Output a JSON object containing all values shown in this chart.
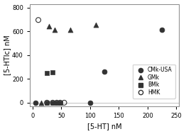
{
  "title": "",
  "xlabel": "[5-HT] nM",
  "ylabel": "[5-HTlc] nM",
  "xlim": [
    -5,
    255
  ],
  "ylim": [
    -30,
    830
  ],
  "yticks": [
    0,
    200,
    400,
    600,
    800
  ],
  "xticks": [
    0,
    50,
    100,
    150,
    200,
    250
  ],
  "series": {
    "CMk-USA": {
      "x": [
        5,
        100,
        125,
        225
      ],
      "y": [
        0,
        0,
        260,
        610
      ],
      "marker": "o",
      "color": "#333333",
      "filled": true,
      "markersize": 5
    },
    "GMk": {
      "x": [
        15,
        28,
        38,
        65,
        110
      ],
      "y": [
        0,
        645,
        610,
        610,
        655
      ],
      "marker": "^",
      "color": "#333333",
      "filled": true,
      "markersize": 5
    },
    "BMk": {
      "x": [
        25,
        35
      ],
      "y": [
        248,
        253
      ],
      "marker": "s",
      "color": "#333333",
      "filled": true,
      "markersize": 5
    },
    "BMk_zero": {
      "x": [
        25,
        35,
        42,
        48
      ],
      "y": [
        0,
        0,
        0,
        0
      ],
      "marker": "s",
      "color": "#333333",
      "filled": true,
      "markersize": 5
    },
    "HMK": {
      "x": [
        10,
        25,
        35,
        42,
        48,
        55
      ],
      "y": [
        695,
        0,
        0,
        0,
        0,
        0
      ],
      "marker": "o",
      "color": "#333333",
      "filled": false,
      "markersize": 5
    }
  },
  "legend_entries": [
    {
      "label": "CMk-USA",
      "marker": "o",
      "filled": true
    },
    {
      "label": "GMk",
      "marker": "^",
      "filled": true
    },
    {
      "label": "BMk",
      "marker": "s",
      "filled": true
    },
    {
      "label": "HMK",
      "marker": "o",
      "filled": false
    }
  ],
  "legend_loc": "lower right",
  "plot_bg": "#ffffff",
  "marker_color": "#333333"
}
